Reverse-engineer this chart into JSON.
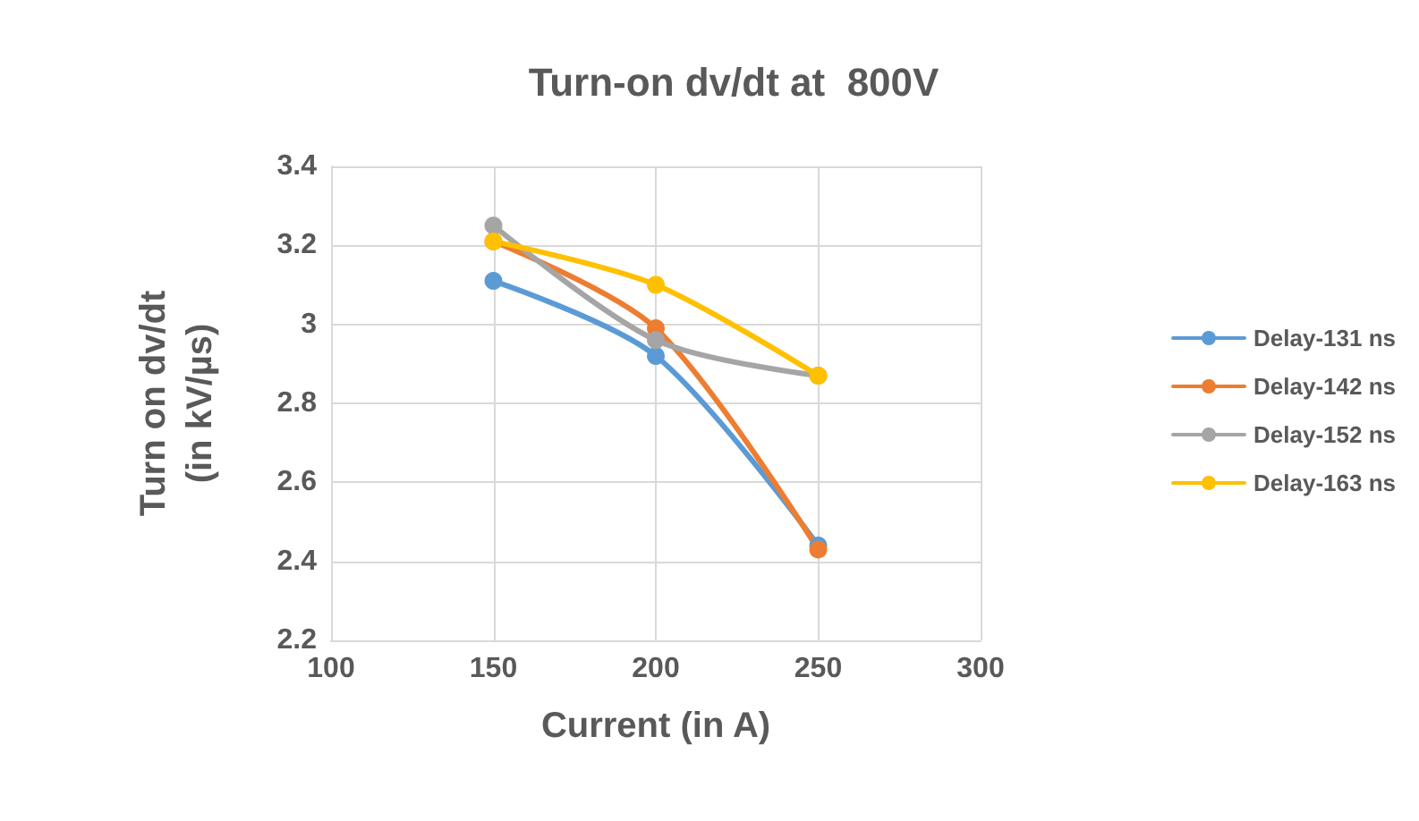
{
  "chart_data": {
    "type": "line",
    "title": "Turn-on dv/dt at  800V",
    "xlabel": "Current (in A)",
    "ylabel": "Turn on dv/dt\n(in kV/µs)",
    "x": [
      150,
      200,
      250
    ],
    "series": [
      {
        "name": "Delay-131 ns",
        "color": "#5b9bd5",
        "values": [
          3.11,
          2.92,
          2.44
        ]
      },
      {
        "name": "Delay-142 ns",
        "color": "#ed7d31",
        "values": [
          3.21,
          2.99,
          2.43
        ]
      },
      {
        "name": "Delay-152 ns",
        "color": "#a5a5a5",
        "values": [
          3.25,
          2.96,
          2.87
        ]
      },
      {
        "name": "Delay-163 ns",
        "color": "#ffc000",
        "values": [
          3.21,
          3.1,
          2.87
        ]
      }
    ],
    "xlim": [
      100,
      300
    ],
    "xticks": [
      100,
      150,
      200,
      250,
      300
    ],
    "ylim": [
      2.2,
      3.4
    ],
    "yticks": [
      2.2,
      2.4,
      2.6,
      2.8,
      3,
      3.2,
      3.4
    ],
    "grid": true,
    "legend": "right",
    "marker": "circle",
    "line_style": "solid"
  }
}
